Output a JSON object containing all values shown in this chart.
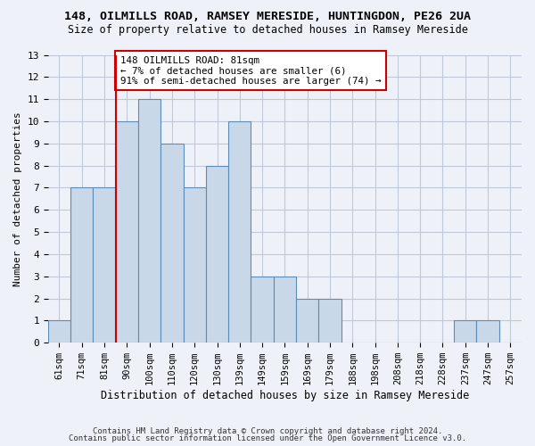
{
  "title1": "148, OILMILLS ROAD, RAMSEY MERESIDE, HUNTINGDON, PE26 2UA",
  "title2": "Size of property relative to detached houses in Ramsey Mereside",
  "xlabel": "Distribution of detached houses by size in Ramsey Mereside",
  "ylabel": "Number of detached properties",
  "footnote1": "Contains HM Land Registry data © Crown copyright and database right 2024.",
  "footnote2": "Contains public sector information licensed under the Open Government Licence v3.0.",
  "categories": [
    "61sqm",
    "71sqm",
    "81sqm",
    "90sqm",
    "100sqm",
    "110sqm",
    "120sqm",
    "130sqm",
    "139sqm",
    "149sqm",
    "159sqm",
    "169sqm",
    "179sqm",
    "188sqm",
    "198sqm",
    "208sqm",
    "218sqm",
    "228sqm",
    "237sqm",
    "247sqm",
    "257sqm"
  ],
  "values": [
    1,
    7,
    7,
    10,
    11,
    9,
    7,
    8,
    10,
    3,
    3,
    2,
    2,
    0,
    0,
    0,
    0,
    0,
    1,
    1,
    0
  ],
  "bar_color": "#c8d8e8",
  "bar_edge_color": "#5b8db8",
  "vline_color": "#cc0000",
  "vline_x": 2.5,
  "annotation_text": "148 OILMILLS ROAD: 81sqm\n← 7% of detached houses are smaller (6)\n91% of semi-detached houses are larger (74) →",
  "annotation_box_facecolor": "white",
  "annotation_box_edgecolor": "#cc0000",
  "ylim": [
    0,
    13
  ],
  "yticks": [
    0,
    1,
    2,
    3,
    4,
    5,
    6,
    7,
    8,
    9,
    10,
    11,
    12,
    13
  ],
  "grid_color": "#c0c8d8",
  "bg_color": "#eef2f8"
}
